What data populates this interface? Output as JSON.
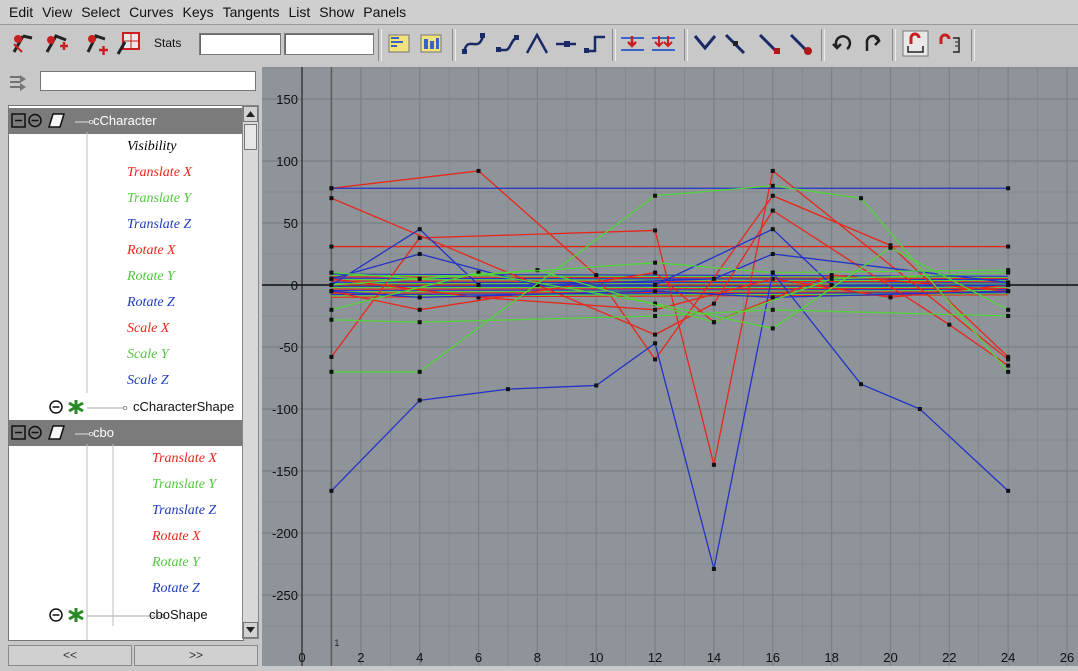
{
  "menu": [
    "Edit",
    "View",
    "Select",
    "Curves",
    "Keys",
    "Tangents",
    "List",
    "Show",
    "Panels"
  ],
  "toolbar": {
    "stats_label": "Stats",
    "stats_field_1": "",
    "stats_field_2": "",
    "tools": [
      "move-key-tool-icon",
      "insert-key-tool-icon",
      "add-key-tool-icon",
      "lattice-deform-keys-icon",
      "frame-all-icon",
      "frame-playback-range-icon",
      "spline-tangents-icon",
      "clamped-tangents-icon",
      "linear-tangents-icon",
      "flat-tangents-icon",
      "step-tangents-icon",
      "buffer-curve-snapshot-icon",
      "swap-buffer-curves-icon",
      "break-tangents-icon",
      "unify-tangents-icon",
      "free-tangent-weight-icon",
      "lock-tangent-weight-icon",
      "pre-infinity-cycle-icon",
      "post-infinity-cycle-icon",
      "auto-load-selection-icon",
      "load-selected-objects-icon"
    ]
  },
  "outliner": {
    "filter_value": "",
    "rows": [
      {
        "type": "node",
        "label": "cCharacter",
        "icon": "transform-node-icon",
        "selected": true
      },
      {
        "type": "attr",
        "label": "Visibility",
        "color": "#000000"
      },
      {
        "type": "attr",
        "label": "Translate X",
        "color": "#e8271b"
      },
      {
        "type": "attr",
        "label": "Translate Y",
        "color": "#50c83c"
      },
      {
        "type": "attr",
        "label": "Translate Z",
        "color": "#1f3bbd"
      },
      {
        "type": "attr",
        "label": "Rotate X",
        "color": "#e8271b"
      },
      {
        "type": "attr",
        "label": "Rotate Y",
        "color": "#50c83c"
      },
      {
        "type": "attr",
        "label": "Rotate Z",
        "color": "#1f3bbd"
      },
      {
        "type": "attr",
        "label": "Scale X",
        "color": "#e8271b"
      },
      {
        "type": "attr",
        "label": "Scale Y",
        "color": "#50c83c"
      },
      {
        "type": "attr",
        "label": "Scale Z",
        "color": "#1f3bbd"
      },
      {
        "type": "shape",
        "label": "cCharacterShape",
        "icon": "shape-node-icon"
      },
      {
        "type": "node",
        "label": "cbo",
        "icon": "transform-node-icon",
        "selected": true
      },
      {
        "type": "attr2",
        "label": "Translate X",
        "color": "#e8271b"
      },
      {
        "type": "attr2",
        "label": "Translate Y",
        "color": "#50c83c"
      },
      {
        "type": "attr2",
        "label": "Translate Z",
        "color": "#1f3bbd"
      },
      {
        "type": "attr2",
        "label": "Rotate X",
        "color": "#e8271b"
      },
      {
        "type": "attr2",
        "label": "Rotate Y",
        "color": "#50c83c"
      },
      {
        "type": "attr2",
        "label": "Rotate Z",
        "color": "#1f3bbd"
      },
      {
        "type": "shape2",
        "label": "cboShape",
        "icon": "shape-node-icon"
      }
    ],
    "nav_prev": "<<",
    "nav_next": ">>"
  },
  "graph": {
    "x_ticks": [
      "0",
      "2",
      "4",
      "6",
      "8",
      "10",
      "12",
      "14",
      "16",
      "18",
      "20",
      "22",
      "24",
      "26"
    ],
    "y_ticks": [
      "150",
      "100",
      "50",
      "0",
      "-50",
      "-100",
      "-150",
      "-200",
      "-250"
    ],
    "current_frame_label": "1",
    "colors": {
      "red": "#e8271b",
      "green": "#55d23c",
      "blue": "#2233c8",
      "grid": "#7a8086",
      "axis": "#111111"
    }
  },
  "chart_data": {
    "type": "line",
    "x_range": [
      0,
      26
    ],
    "y_range": [
      -270,
      165
    ],
    "current_frame": 1,
    "series": [
      {
        "color": "red",
        "points": [
          [
            1,
            -58
          ],
          [
            4,
            38
          ],
          [
            12,
            44
          ],
          [
            14,
            -145
          ],
          [
            16,
            92
          ],
          [
            24,
            -60
          ]
        ]
      },
      {
        "color": "red",
        "points": [
          [
            1,
            78
          ],
          [
            6,
            92
          ],
          [
            10,
            8
          ],
          [
            12,
            -60
          ],
          [
            16,
            72
          ],
          [
            20,
            32
          ],
          [
            24,
            -58
          ]
        ]
      },
      {
        "color": "red",
        "points": [
          [
            1,
            31
          ],
          [
            24,
            31
          ]
        ]
      },
      {
        "color": "red",
        "points": [
          [
            1,
            70
          ],
          [
            12,
            -40
          ],
          [
            14,
            -15
          ],
          [
            16,
            60
          ],
          [
            22,
            -32
          ],
          [
            24,
            -65
          ]
        ]
      },
      {
        "color": "red",
        "points": [
          [
            1,
            5
          ],
          [
            6,
            -10
          ],
          [
            12,
            -20
          ],
          [
            16,
            5
          ],
          [
            20,
            -10
          ],
          [
            24,
            0
          ]
        ]
      },
      {
        "color": "red",
        "points": [
          [
            1,
            -5
          ],
          [
            4,
            -20
          ],
          [
            12,
            10
          ],
          [
            14,
            -30
          ],
          [
            18,
            8
          ],
          [
            24,
            -5
          ]
        ]
      },
      {
        "color": "blue",
        "points": [
          [
            1,
            78
          ],
          [
            24,
            78
          ]
        ]
      },
      {
        "color": "blue",
        "points": [
          [
            1,
            -166
          ],
          [
            4,
            -93
          ],
          [
            7,
            -84
          ],
          [
            10,
            -81
          ],
          [
            12,
            -47
          ],
          [
            14,
            -229
          ],
          [
            16,
            10
          ],
          [
            19,
            -80
          ],
          [
            21,
            -100
          ],
          [
            24,
            -166
          ]
        ]
      },
      {
        "color": "blue",
        "points": [
          [
            1,
            0
          ],
          [
            4,
            45
          ],
          [
            6,
            0
          ],
          [
            12,
            0
          ],
          [
            16,
            45
          ],
          [
            18,
            0
          ],
          [
            24,
            0
          ]
        ]
      },
      {
        "color": "blue",
        "points": [
          [
            1,
            5
          ],
          [
            4,
            25
          ],
          [
            8,
            0
          ],
          [
            14,
            5
          ],
          [
            16,
            25
          ],
          [
            24,
            2
          ]
        ]
      },
      {
        "color": "blue",
        "points": [
          [
            1,
            -5
          ],
          [
            4,
            -10
          ],
          [
            12,
            -5
          ],
          [
            16,
            -10
          ],
          [
            24,
            -5
          ]
        ]
      },
      {
        "color": "green",
        "points": [
          [
            1,
            -70
          ],
          [
            4,
            -70
          ],
          [
            12,
            72
          ],
          [
            16,
            80
          ],
          [
            19,
            70
          ],
          [
            24,
            -70
          ]
        ]
      },
      {
        "color": "green",
        "points": [
          [
            1,
            -20
          ],
          [
            6,
            10
          ],
          [
            12,
            -15
          ],
          [
            16,
            -35
          ],
          [
            20,
            30
          ],
          [
            24,
            -20
          ]
        ]
      },
      {
        "color": "green",
        "points": [
          [
            1,
            0
          ],
          [
            8,
            12
          ],
          [
            14,
            -30
          ],
          [
            18,
            5
          ],
          [
            24,
            10
          ]
        ]
      },
      {
        "color": "green",
        "points": [
          [
            1,
            -28
          ],
          [
            4,
            -30
          ],
          [
            12,
            -25
          ],
          [
            16,
            -20
          ],
          [
            24,
            -25
          ]
        ]
      },
      {
        "color": "green",
        "points": [
          [
            1,
            10
          ],
          [
            4,
            5
          ],
          [
            12,
            18
          ],
          [
            16,
            10
          ],
          [
            24,
            12
          ]
        ]
      }
    ]
  }
}
